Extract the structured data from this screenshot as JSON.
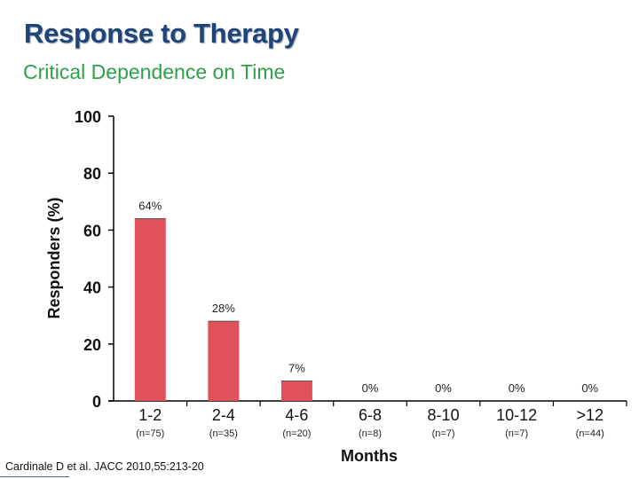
{
  "slide": {
    "title": "Response to Therapy",
    "subtitle": "Critical Dependence on Time",
    "citation": "Cardinale D et al. JACC 2010,55:213-20"
  },
  "colors": {
    "title": "#1e4479",
    "subtitle": "#2fa04a",
    "bar": "#e0525a"
  },
  "chart_data": {
    "type": "bar",
    "title": "",
    "xlabel": "Months",
    "ylabel": "Responders (%)",
    "ylim": [
      0,
      100
    ],
    "yticks": [
      0,
      20,
      40,
      60,
      80,
      100
    ],
    "categories": [
      "1-2",
      "2-4",
      "4-6",
      "6-8",
      "8-10",
      "10-12",
      ">12"
    ],
    "sample_sizes": [
      "(n=75)",
      "(n=35)",
      "(n=20)",
      "(n=8)",
      "(n=7)",
      "(n=7)",
      "(n=44)"
    ],
    "values": [
      64,
      28,
      7,
      0,
      0,
      0,
      0
    ],
    "data_labels": [
      "64%",
      "28%",
      "7%",
      "0%",
      "0%",
      "0%",
      "0%"
    ],
    "grid": false,
    "legend": "none"
  }
}
